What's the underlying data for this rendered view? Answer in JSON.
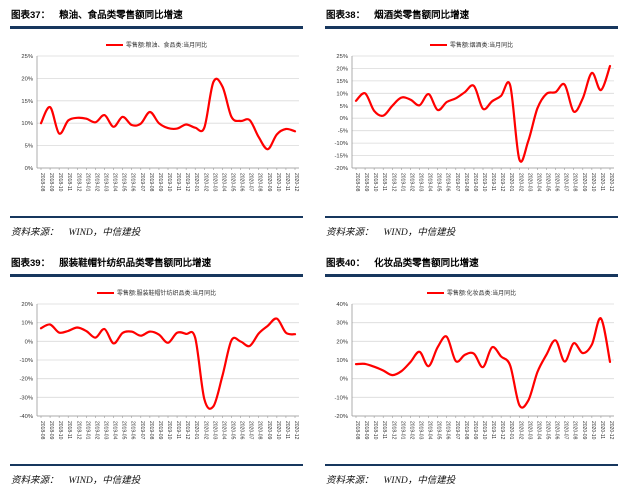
{
  "colors": {
    "accent_navy": "#17375E",
    "line_red": "#FF0000",
    "grid": "#DADADA",
    "axis": "#999999",
    "tick_text": "#333333"
  },
  "source": {
    "prefix": "资料来源：",
    "value": "WIND，中信建投"
  },
  "chart_data": [
    {
      "type": "line",
      "figure_label": "图表37：",
      "title": "粮油、食品类零售额同比增速",
      "legend": "零售额:粮油、食品类:当月同比",
      "ylabel": "",
      "xlabel": "",
      "ylim": [
        0,
        25
      ],
      "ystep": 5,
      "grid": true,
      "legend_position": "top",
      "categories": [
        "2018-08",
        "2018-09",
        "2018-10",
        "2018-11",
        "2018-12",
        "2019-01",
        "2019-02",
        "2019-03",
        "2019-04",
        "2019-05",
        "2019-06",
        "2019-07",
        "2019-08",
        "2019-09",
        "2019-10",
        "2019-11",
        "2019-12",
        "2020-01",
        "2020-02",
        "2020-03",
        "2020-04",
        "2020-05",
        "2020-06",
        "2020-07",
        "2020-08",
        "2020-09",
        "2020-10",
        "2020-11",
        "2020-12"
      ],
      "values": [
        10.0,
        13.6,
        7.7,
        10.6,
        11.2,
        11.0,
        10.2,
        11.8,
        9.2,
        11.4,
        9.6,
        9.9,
        12.5,
        10.0,
        8.9,
        8.8,
        9.7,
        9.0,
        9.0,
        19.2,
        18.2,
        11.4,
        10.5,
        10.7,
        6.9,
        4.2,
        7.5,
        8.7,
        8.2
      ]
    },
    {
      "type": "line",
      "figure_label": "图表38：",
      "title": "烟酒类零售额同比增速",
      "legend": "零售额:烟酒类:当月同比",
      "ylabel": "",
      "xlabel": "",
      "ylim": [
        -20,
        25
      ],
      "ystep": 5,
      "grid": true,
      "legend_position": "top",
      "categories": [
        "2018-08",
        "2018-09",
        "2018-10",
        "2018-11",
        "2018-12",
        "2019-01",
        "2019-02",
        "2019-03",
        "2019-04",
        "2019-05",
        "2019-06",
        "2019-07",
        "2019-08",
        "2019-09",
        "2019-10",
        "2019-11",
        "2019-12",
        "2020-01",
        "2020-02",
        "2020-03",
        "2020-04",
        "2020-05",
        "2020-06",
        "2020-07",
        "2020-08",
        "2020-09",
        "2020-10",
        "2020-11",
        "2020-12"
      ],
      "values": [
        7.0,
        10.0,
        3.0,
        1.0,
        5.0,
        8.3,
        7.5,
        5.2,
        9.7,
        3.3,
        6.5,
        8.0,
        10.5,
        13.0,
        3.8,
        6.8,
        9.0,
        13.2,
        -16.5,
        -9.0,
        4.0,
        9.8,
        10.5,
        13.5,
        2.7,
        8.0,
        18.2,
        11.3,
        21.0
      ]
    },
    {
      "type": "line",
      "figure_label": "图表39：",
      "title": "服装鞋帽针纺织品类零售额同比增速",
      "legend": "零售额:服装鞋帽针纺织品类:当月同比",
      "ylabel": "",
      "xlabel": "",
      "ylim": [
        -40,
        20
      ],
      "ystep": 10,
      "grid": true,
      "legend_position": "top",
      "categories": [
        "2018-08",
        "2018-09",
        "2018-10",
        "2018-11",
        "2018-12",
        "2019-01",
        "2019-02",
        "2019-03",
        "2019-04",
        "2019-05",
        "2019-06",
        "2019-07",
        "2019-08",
        "2019-09",
        "2019-10",
        "2019-11",
        "2019-12",
        "2020-01",
        "2020-02",
        "2020-03",
        "2020-04",
        "2020-05",
        "2020-06",
        "2020-07",
        "2020-08",
        "2020-09",
        "2020-10",
        "2020-11",
        "2020-12"
      ],
      "values": [
        7.0,
        9.0,
        4.7,
        5.6,
        7.4,
        5.5,
        2.0,
        6.6,
        -1.1,
        4.5,
        5.2,
        3.0,
        5.2,
        3.6,
        -0.8,
        4.6,
        4.0,
        1.9,
        -30.9,
        -34.8,
        -18.5,
        0.6,
        -0.1,
        -2.5,
        4.2,
        8.3,
        12.2,
        4.6,
        3.8
      ]
    },
    {
      "type": "line",
      "figure_label": "图表40：",
      "title": "化妆品类零售额同比增速",
      "legend": "零售额:化妆品类:当月同比",
      "ylabel": "",
      "xlabel": "",
      "ylim": [
        -20,
        40
      ],
      "ystep": 10,
      "grid": true,
      "legend_position": "top",
      "categories": [
        "2018-08",
        "2018-09",
        "2018-10",
        "2018-11",
        "2018-12",
        "2019-01",
        "2019-02",
        "2019-03",
        "2019-04",
        "2019-05",
        "2019-06",
        "2019-07",
        "2019-08",
        "2019-09",
        "2019-10",
        "2019-11",
        "2019-12",
        "2020-01",
        "2020-02",
        "2020-03",
        "2020-04",
        "2020-05",
        "2020-06",
        "2020-07",
        "2020-08",
        "2020-09",
        "2020-10",
        "2020-11",
        "2020-12"
      ],
      "values": [
        7.8,
        7.9,
        6.4,
        4.4,
        1.9,
        4.0,
        8.9,
        14.4,
        6.7,
        16.8,
        22.5,
        9.4,
        12.8,
        13.4,
        6.2,
        16.8,
        11.9,
        7.0,
        -14.1,
        -11.6,
        3.5,
        12.9,
        20.5,
        9.2,
        19.0,
        13.7,
        18.3,
        32.3,
        9.0
      ]
    }
  ]
}
